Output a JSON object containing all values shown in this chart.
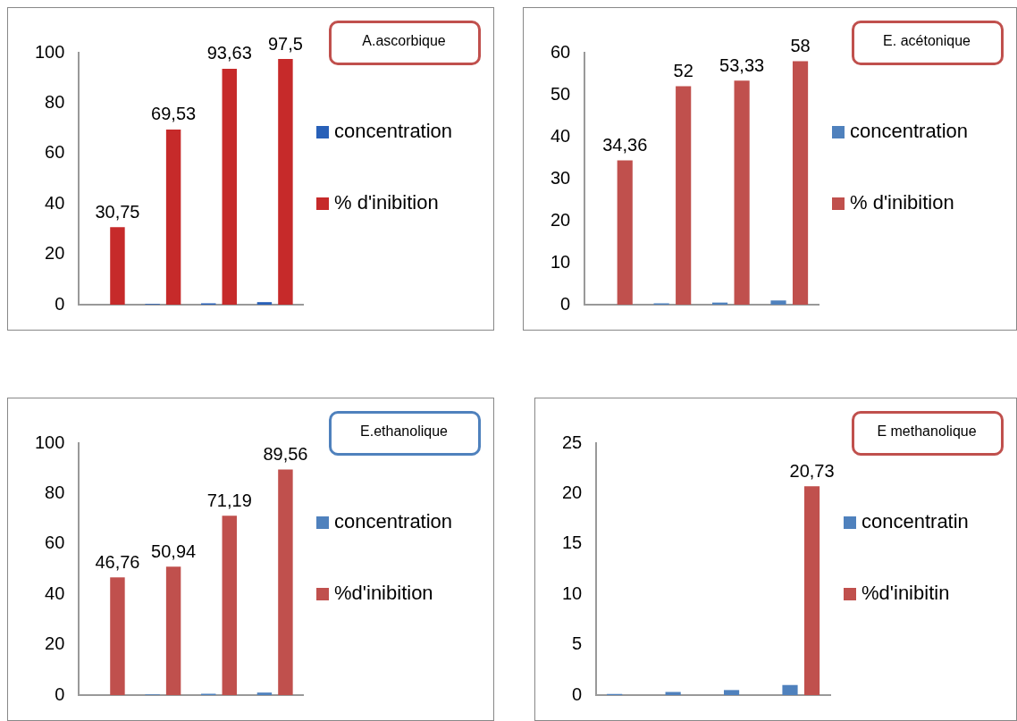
{
  "chart_data": [
    {
      "type": "bar",
      "annotations": [
        "A.ascorbique"
      ],
      "categories": [
        null,
        null,
        null,
        null
      ],
      "series": [
        {
          "name": "concentration",
          "color": "#2860b8",
          "values": [
            null,
            0.3,
            0.5,
            1
          ]
        },
        {
          "name": "% d'inibition",
          "color": "#c62a2a",
          "values": [
            30.75,
            69.53,
            93.63,
            97.5
          ],
          "value_labels": [
            "30,75",
            "69,53",
            "93,63",
            "97,5"
          ]
        }
      ],
      "ylim": [
        0,
        100
      ],
      "yticks": [
        0,
        20,
        40,
        60,
        80,
        100
      ],
      "grid": false,
      "legend": "right",
      "tick_labels": "y"
    },
    {
      "type": "bar",
      "annotations": [
        "E. acétonique"
      ],
      "categories": [
        null,
        null,
        null,
        null
      ],
      "series": [
        {
          "name": "concentration",
          "color": "#4f81bd",
          "values": [
            null,
            0.3,
            0.5,
            1
          ]
        },
        {
          "name": "%  d'inibition",
          "color": "#c0504d",
          "values": [
            34.36,
            52,
            53.33,
            58
          ],
          "value_labels": [
            "34,36",
            "52",
            "53,33",
            "58"
          ]
        }
      ],
      "ylim": [
        0,
        60
      ],
      "yticks": [
        0,
        10,
        20,
        30,
        40,
        50,
        60
      ],
      "grid": false,
      "legend": "right",
      "tick_labels": "y"
    },
    {
      "type": "bar",
      "annotations": [
        "E.ethanolique"
      ],
      "categories": [
        null,
        null,
        null,
        null
      ],
      "series": [
        {
          "name": "concentration",
          "color": "#4f81bd",
          "values": [
            null,
            0.3,
            0.5,
            1
          ]
        },
        {
          "name": "%d'inibition",
          "color": "#c0504d",
          "values": [
            46.76,
            50.94,
            71.19,
            89.56
          ],
          "value_labels": [
            "46,76",
            "50,94",
            "71,19",
            "89,56"
          ]
        }
      ],
      "ylim": [
        0,
        100
      ],
      "yticks": [
        0,
        20,
        40,
        60,
        80,
        100
      ],
      "grid": false,
      "legend": "right",
      "tick_labels": "y"
    },
    {
      "type": "bar",
      "annotations": [
        "E methanolique"
      ],
      "categories": [
        null,
        null,
        null,
        null
      ],
      "series": [
        {
          "name": "concentratin",
          "color": "#4f81bd",
          "values": [
            0.1,
            0.3,
            0.5,
            1
          ]
        },
        {
          "name": "%d'inibitin",
          "color": "#c0504d",
          "values": [
            0,
            0,
            0,
            20.73
          ],
          "value_labels": [
            null,
            null,
            null,
            "20,73"
          ]
        }
      ],
      "ylim": [
        0,
        25
      ],
      "yticks": [
        0,
        5,
        10,
        15,
        20,
        25
      ],
      "grid": false,
      "legend": "right",
      "tick_labels": "y"
    }
  ]
}
